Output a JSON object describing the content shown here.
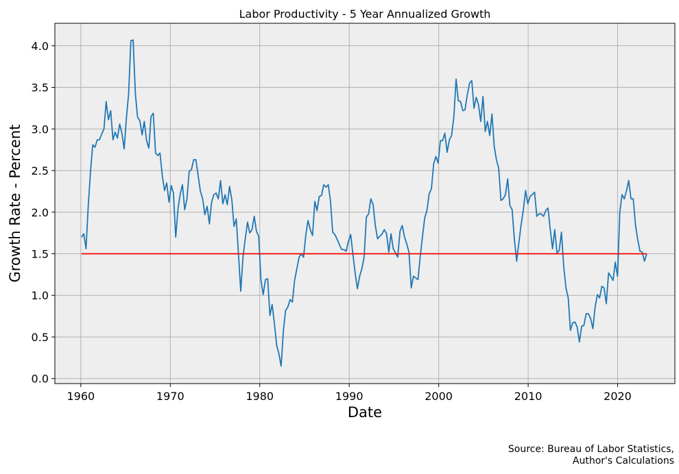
{
  "chart_data": {
    "type": "line",
    "title": "Labor Productivity - 5 Year Annualized Growth",
    "xlabel": "Date",
    "ylabel": "Growth Rate - Percent",
    "xlim": [
      1957.1,
      2026.4
    ],
    "ylim": [
      -0.06,
      4.27
    ],
    "grid": true,
    "x_ticks": [
      1960,
      1970,
      1980,
      1990,
      2000,
      2010,
      2020
    ],
    "y_ticks": [
      "0.0",
      "0.5",
      "1.0",
      "1.5",
      "2.0",
      "2.5",
      "3.0",
      "3.5",
      "4.0"
    ],
    "series": [
      {
        "name": "5 Year Annualized Growth",
        "color": "#1f77b4",
        "x_start": 1960.08,
        "x_end": 2023.25,
        "frequency": "quarterly",
        "values": [
          1.7,
          1.74,
          1.56,
          2.08,
          2.49,
          2.81,
          2.78,
          2.87,
          2.87,
          2.94,
          3.0,
          3.33,
          3.11,
          3.22,
          2.87,
          2.96,
          2.89,
          3.06,
          2.95,
          2.76,
          3.13,
          3.42,
          4.06,
          4.07,
          3.42,
          3.14,
          3.1,
          2.93,
          3.09,
          2.86,
          2.77,
          3.15,
          3.19,
          2.71,
          2.68,
          2.71,
          2.44,
          2.26,
          2.35,
          2.12,
          2.32,
          2.23,
          1.7,
          2.04,
          2.22,
          2.33,
          2.03,
          2.16,
          2.49,
          2.51,
          2.63,
          2.63,
          2.44,
          2.25,
          2.16,
          1.97,
          2.07,
          1.86,
          2.12,
          2.21,
          2.23,
          2.16,
          2.38,
          2.1,
          2.21,
          2.09,
          2.31,
          2.15,
          1.83,
          1.92,
          1.48,
          1.05,
          1.46,
          1.68,
          1.88,
          1.75,
          1.79,
          1.95,
          1.77,
          1.71,
          1.18,
          1.01,
          1.19,
          1.2,
          0.76,
          0.89,
          0.66,
          0.4,
          0.3,
          0.15,
          0.58,
          0.82,
          0.86,
          0.95,
          0.92,
          1.18,
          1.32,
          1.46,
          1.5,
          1.46,
          1.73,
          1.9,
          1.79,
          1.72,
          2.13,
          2.02,
          2.19,
          2.2,
          2.33,
          2.3,
          2.33,
          2.14,
          1.76,
          1.73,
          1.67,
          1.61,
          1.55,
          1.55,
          1.53,
          1.65,
          1.73,
          1.5,
          1.27,
          1.08,
          1.23,
          1.32,
          1.46,
          1.94,
          1.98,
          2.16,
          2.09,
          1.84,
          1.68,
          1.71,
          1.74,
          1.79,
          1.74,
          1.52,
          1.74,
          1.56,
          1.51,
          1.46,
          1.77,
          1.84,
          1.7,
          1.62,
          1.52,
          1.09,
          1.23,
          1.21,
          1.19,
          1.46,
          1.7,
          1.93,
          2.02,
          2.22,
          2.28,
          2.58,
          2.67,
          2.59,
          2.86,
          2.86,
          2.95,
          2.72,
          2.87,
          2.92,
          3.14,
          3.6,
          3.34,
          3.33,
          3.22,
          3.23,
          3.41,
          3.55,
          3.58,
          3.25,
          3.38,
          3.29,
          3.09,
          3.39,
          2.97,
          3.09,
          2.92,
          3.18,
          2.79,
          2.63,
          2.53,
          2.14,
          2.16,
          2.21,
          2.4,
          2.08,
          2.03,
          1.67,
          1.41,
          1.63,
          1.85,
          2.03,
          2.26,
          2.1,
          2.19,
          2.21,
          2.24,
          1.95,
          1.98,
          1.98,
          1.95,
          2.02,
          2.05,
          1.79,
          1.56,
          1.79,
          1.51,
          1.54,
          1.76,
          1.35,
          1.09,
          0.97,
          0.58,
          0.67,
          0.68,
          0.62,
          0.44,
          0.63,
          0.64,
          0.78,
          0.78,
          0.72,
          0.6,
          0.86,
          1.01,
          0.97,
          1.11,
          1.09,
          0.9,
          1.27,
          1.23,
          1.18,
          1.4,
          1.23,
          2.0,
          2.21,
          2.16,
          2.26,
          2.38,
          2.16,
          2.16,
          1.84,
          1.67,
          1.53,
          1.52,
          1.41,
          1.5
        ]
      },
      {
        "name": "Reference 1.5%",
        "color": "#ff0000",
        "x": [
          1960.08,
          2023.25
        ],
        "values": [
          1.5,
          1.5
        ]
      }
    ],
    "source_note": [
      "Source: Bureau of Labor Statistics,",
      "Author's Calculations"
    ]
  }
}
